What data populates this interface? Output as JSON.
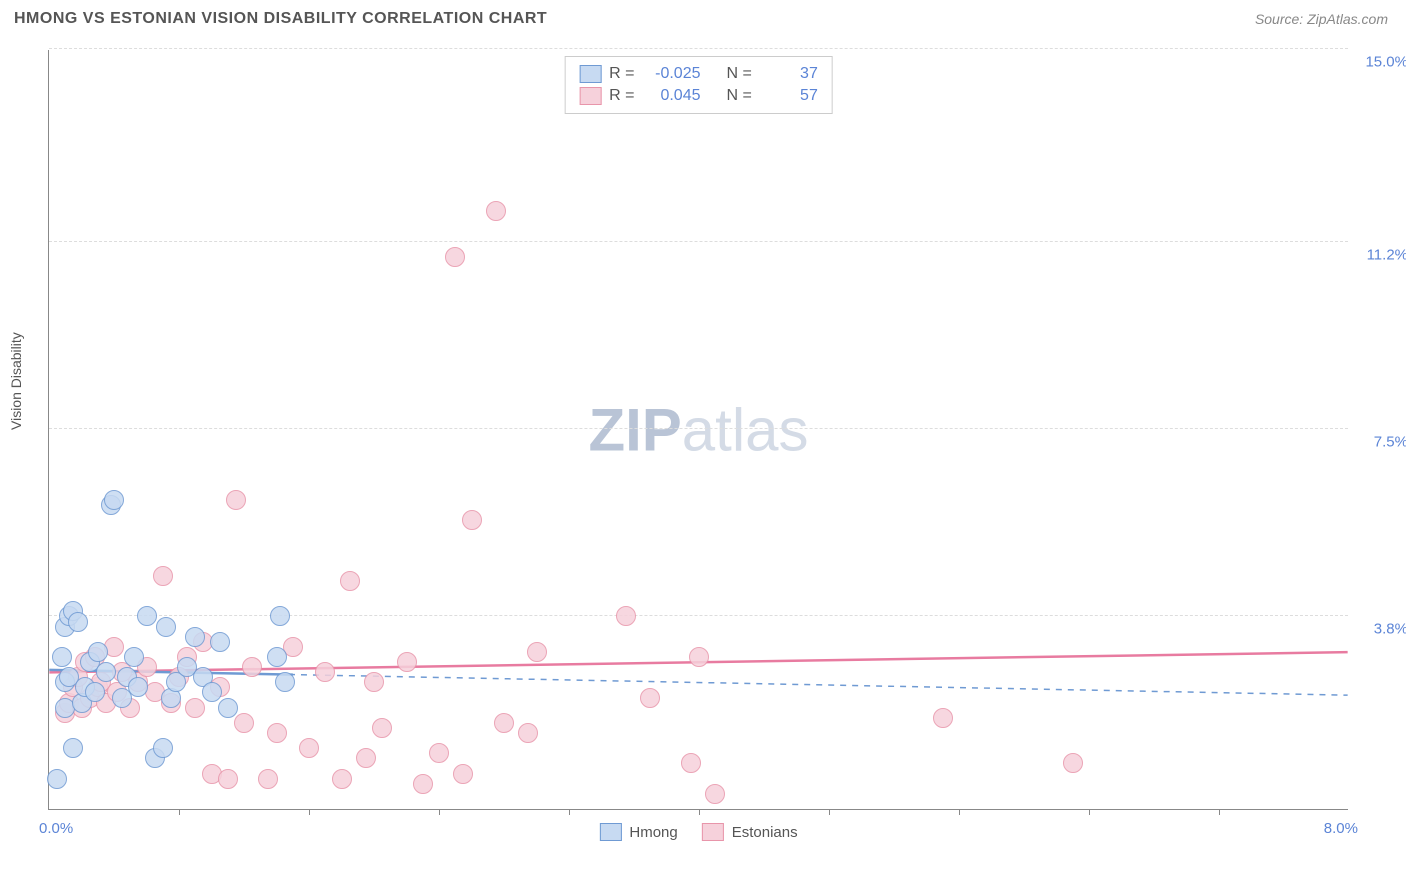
{
  "header": {
    "title": "HMONG VS ESTONIAN VISION DISABILITY CORRELATION CHART",
    "source": "Source: ZipAtlas.com"
  },
  "watermark": {
    "bold": "ZIP",
    "light": "atlas",
    "color_bold": "#b9c4d6",
    "color_light": "#d4dbe6"
  },
  "chart": {
    "type": "scatter",
    "ylabel": "Vision Disability",
    "xlim": [
      0.0,
      8.0
    ],
    "ylim": [
      0.0,
      15.0
    ],
    "x_axis_min_label": "0.0%",
    "x_axis_max_label": "8.0%",
    "y_ticks": [
      {
        "v": 3.8,
        "label": "3.8%"
      },
      {
        "v": 7.5,
        "label": "7.5%"
      },
      {
        "v": 11.2,
        "label": "11.2%"
      },
      {
        "v": 15.0,
        "label": "15.0%"
      }
    ],
    "x_tick_positions": [
      0.8,
      1.6,
      2.4,
      3.2,
      4.0,
      4.8,
      5.6,
      6.4,
      7.2
    ],
    "background_color": "#ffffff",
    "grid_color": "#dddddd",
    "axis_color": "#888888",
    "tick_label_color": "#5b84d6",
    "marker_radius": 10,
    "series": [
      {
        "name": "Hmong",
        "stroke": "#6f9ad3",
        "fill": "#c7daf2",
        "R": "-0.025",
        "N": "37",
        "regression": {
          "y_at_xmin": 2.75,
          "y_at_xmax": 2.25,
          "dash": "6,6",
          "width": 1.5,
          "color": "#6f9ad3"
        },
        "regression_solid_segment": {
          "x_from": 0.0,
          "x_to": 1.5
        },
        "points": [
          {
            "x": 0.05,
            "y": 0.6
          },
          {
            "x": 0.1,
            "y": 2.0
          },
          {
            "x": 0.1,
            "y": 2.5
          },
          {
            "x": 0.12,
            "y": 2.6
          },
          {
            "x": 0.08,
            "y": 3.0
          },
          {
            "x": 0.1,
            "y": 3.6
          },
          {
            "x": 0.12,
            "y": 3.8
          },
          {
            "x": 0.15,
            "y": 3.9
          },
          {
            "x": 0.18,
            "y": 3.7
          },
          {
            "x": 0.2,
            "y": 2.1
          },
          {
            "x": 0.22,
            "y": 2.4
          },
          {
            "x": 0.25,
            "y": 2.9
          },
          {
            "x": 0.28,
            "y": 2.3
          },
          {
            "x": 0.3,
            "y": 3.1
          },
          {
            "x": 0.35,
            "y": 2.7
          },
          {
            "x": 0.38,
            "y": 6.0
          },
          {
            "x": 0.4,
            "y": 6.1
          },
          {
            "x": 0.45,
            "y": 2.2
          },
          {
            "x": 0.48,
            "y": 2.6
          },
          {
            "x": 0.52,
            "y": 3.0
          },
          {
            "x": 0.55,
            "y": 2.4
          },
          {
            "x": 0.6,
            "y": 3.8
          },
          {
            "x": 0.65,
            "y": 1.0
          },
          {
            "x": 0.7,
            "y": 1.2
          },
          {
            "x": 0.72,
            "y": 3.6
          },
          {
            "x": 0.75,
            "y": 2.2
          },
          {
            "x": 0.78,
            "y": 2.5
          },
          {
            "x": 0.85,
            "y": 2.8
          },
          {
            "x": 0.9,
            "y": 3.4
          },
          {
            "x": 0.95,
            "y": 2.6
          },
          {
            "x": 1.0,
            "y": 2.3
          },
          {
            "x": 1.05,
            "y": 3.3
          },
          {
            "x": 1.1,
            "y": 2.0
          },
          {
            "x": 1.4,
            "y": 3.0
          },
          {
            "x": 1.42,
            "y": 3.8
          },
          {
            "x": 1.45,
            "y": 2.5
          },
          {
            "x": 0.15,
            "y": 1.2
          }
        ]
      },
      {
        "name": "Estonians",
        "stroke": "#e895aa",
        "fill": "#f6d1db",
        "R": "0.045",
        "N": "57",
        "regression": {
          "y_at_xmin": 2.7,
          "y_at_xmax": 3.1,
          "dash": "none",
          "width": 2.5,
          "color": "#e87ba0"
        },
        "points": [
          {
            "x": 0.1,
            "y": 1.9
          },
          {
            "x": 0.12,
            "y": 2.1
          },
          {
            "x": 0.15,
            "y": 2.4
          },
          {
            "x": 0.18,
            "y": 2.6
          },
          {
            "x": 0.2,
            "y": 2.0
          },
          {
            "x": 0.22,
            "y": 2.9
          },
          {
            "x": 0.25,
            "y": 2.2
          },
          {
            "x": 0.28,
            "y": 3.0
          },
          {
            "x": 0.3,
            "y": 2.4
          },
          {
            "x": 0.35,
            "y": 2.1
          },
          {
            "x": 0.4,
            "y": 3.2
          },
          {
            "x": 0.45,
            "y": 2.7
          },
          {
            "x": 0.5,
            "y": 2.0
          },
          {
            "x": 0.55,
            "y": 2.5
          },
          {
            "x": 0.6,
            "y": 2.8
          },
          {
            "x": 0.65,
            "y": 2.3
          },
          {
            "x": 0.7,
            "y": 4.6
          },
          {
            "x": 0.75,
            "y": 2.1
          },
          {
            "x": 0.8,
            "y": 2.6
          },
          {
            "x": 0.85,
            "y": 3.0
          },
          {
            "x": 0.9,
            "y": 2.0
          },
          {
            "x": 0.95,
            "y": 3.3
          },
          {
            "x": 1.0,
            "y": 0.7
          },
          {
            "x": 1.05,
            "y": 2.4
          },
          {
            "x": 1.1,
            "y": 0.6
          },
          {
            "x": 1.15,
            "y": 6.1
          },
          {
            "x": 1.2,
            "y": 1.7
          },
          {
            "x": 1.25,
            "y": 2.8
          },
          {
            "x": 1.35,
            "y": 0.6
          },
          {
            "x": 1.4,
            "y": 1.5
          },
          {
            "x": 1.5,
            "y": 3.2
          },
          {
            "x": 1.6,
            "y": 1.2
          },
          {
            "x": 1.7,
            "y": 2.7
          },
          {
            "x": 1.8,
            "y": 0.6
          },
          {
            "x": 1.85,
            "y": 4.5
          },
          {
            "x": 1.95,
            "y": 1.0
          },
          {
            "x": 2.0,
            "y": 2.5
          },
          {
            "x": 2.05,
            "y": 1.6
          },
          {
            "x": 2.2,
            "y": 2.9
          },
          {
            "x": 2.3,
            "y": 0.5
          },
          {
            "x": 2.4,
            "y": 1.1
          },
          {
            "x": 2.5,
            "y": 10.9
          },
          {
            "x": 2.55,
            "y": 0.7
          },
          {
            "x": 2.6,
            "y": 5.7
          },
          {
            "x": 2.75,
            "y": 11.8
          },
          {
            "x": 2.8,
            "y": 1.7
          },
          {
            "x": 2.95,
            "y": 1.5
          },
          {
            "x": 3.0,
            "y": 3.1
          },
          {
            "x": 3.55,
            "y": 3.8
          },
          {
            "x": 3.7,
            "y": 2.2
          },
          {
            "x": 3.95,
            "y": 0.9
          },
          {
            "x": 4.0,
            "y": 3.0
          },
          {
            "x": 4.1,
            "y": 0.3
          },
          {
            "x": 5.5,
            "y": 1.8
          },
          {
            "x": 6.3,
            "y": 0.9
          },
          {
            "x": 0.32,
            "y": 2.5
          },
          {
            "x": 0.42,
            "y": 2.3
          }
        ]
      }
    ],
    "legend_top": {
      "r_label": "R =",
      "n_label": "N ="
    },
    "legend_bottom_labels": [
      "Hmong",
      "Estonians"
    ]
  }
}
